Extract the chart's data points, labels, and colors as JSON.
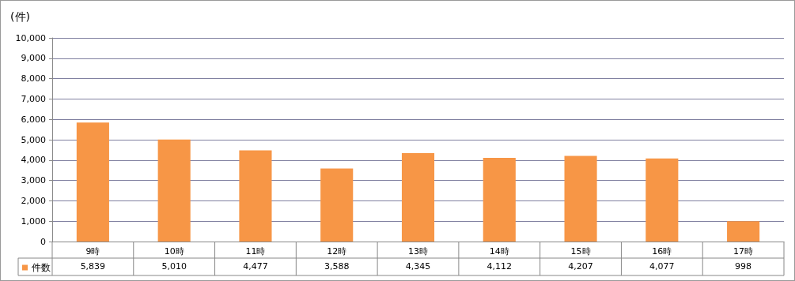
{
  "chart_data": {
    "type": "bar",
    "ylabel": "(件)",
    "categories": [
      "9時",
      "10時",
      "11時",
      "12時",
      "13時",
      "14時",
      "15時",
      "16時",
      "17時"
    ],
    "series": [
      {
        "name": "件数",
        "color": "#f79646",
        "values": [
          5839,
          5010,
          4477,
          3588,
          4345,
          4112,
          4207,
          4077,
          998
        ],
        "value_labels": [
          "5,839",
          "5,010",
          "4,477",
          "3,588",
          "4,345",
          "4,112",
          "4,207",
          "4,077",
          "998"
        ]
      }
    ],
    "ylim": [
      0,
      10000
    ],
    "yticks": [
      0,
      {
        "value": 1000,
        "label": "1,000"
      },
      {
        "value": 2000,
        "label": "2,000"
      },
      {
        "value": 3000,
        "label": "3,000"
      },
      {
        "value": 4000,
        "label": "4,000"
      },
      {
        "value": 5000,
        "label": "5,000"
      },
      {
        "value": 6000,
        "label": "6,000"
      },
      {
        "value": 7000,
        "label": "7,000"
      },
      {
        "value": 8000,
        "label": "8,000"
      },
      {
        "value": 9000,
        "label": "9,000"
      },
      {
        "value": 10000,
        "label": "10,000"
      }
    ],
    "grid": "y",
    "legend": "bottom left"
  }
}
